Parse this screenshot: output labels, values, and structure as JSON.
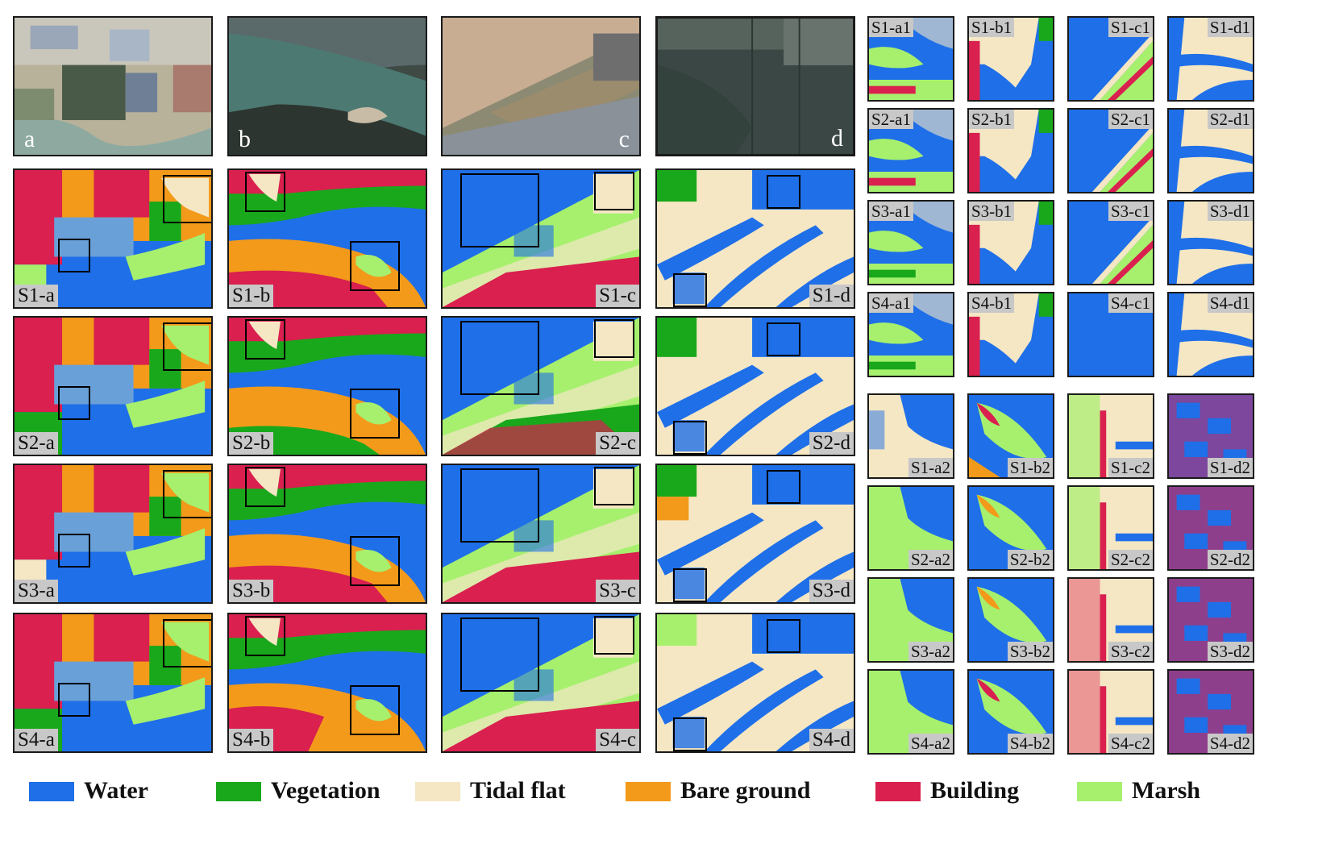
{
  "colors": {
    "water": "#1f6fe8",
    "vegetation": "#19a81c",
    "tidal_flat": "#f5e7c4",
    "bare_ground": "#f39a1a",
    "building": "#d9204f",
    "marsh": "#a6f06e"
  },
  "photos": [
    {
      "label": "a"
    },
    {
      "label": "b"
    },
    {
      "label": "c"
    },
    {
      "label": "d"
    }
  ],
  "main_labels": {
    "S1": [
      "S1-a",
      "S1-b",
      "S1-c",
      "S1-d"
    ],
    "S2": [
      "S2-a",
      "S2-b",
      "S2-c",
      "S2-d"
    ],
    "S3": [
      "S3-a",
      "S3-b",
      "S3-c",
      "S3-d"
    ],
    "S4": [
      "S4-a",
      "S4-b",
      "S4-c",
      "S4-d"
    ]
  },
  "zoom1_labels": {
    "S1": [
      "S1-a1",
      "S1-b1",
      "S1-c1",
      "S1-d1"
    ],
    "S2": [
      "S2-a1",
      "S2-b1",
      "S2-c1",
      "S2-d1"
    ],
    "S3": [
      "S3-a1",
      "S3-b1",
      "S3-c1",
      "S3-d1"
    ],
    "S4": [
      "S4-a1",
      "S4-b1",
      "S4-c1",
      "S4-d1"
    ]
  },
  "zoom2_labels": {
    "S1": [
      "S1-a2",
      "S1-b2",
      "S1-c2",
      "S1-d2"
    ],
    "S2": [
      "S2-a2",
      "S2-b2",
      "S2-c2",
      "S2-d2"
    ],
    "S3": [
      "S3-a2",
      "S3-b2",
      "S3-c2",
      "S3-d2"
    ],
    "S4": [
      "S4-a2",
      "S4-b2",
      "S4-c2",
      "S4-d2"
    ]
  },
  "legend": [
    {
      "label": "Water",
      "color": "#1f6fe8"
    },
    {
      "label": "Vegetation",
      "color": "#19a81c"
    },
    {
      "label": "Tidal flat",
      "color": "#f5e7c4"
    },
    {
      "label": "Bare ground",
      "color": "#f39a1a"
    },
    {
      "label": "Building",
      "color": "#d9204f"
    },
    {
      "label": "Marsh",
      "color": "#a6f06e"
    }
  ]
}
